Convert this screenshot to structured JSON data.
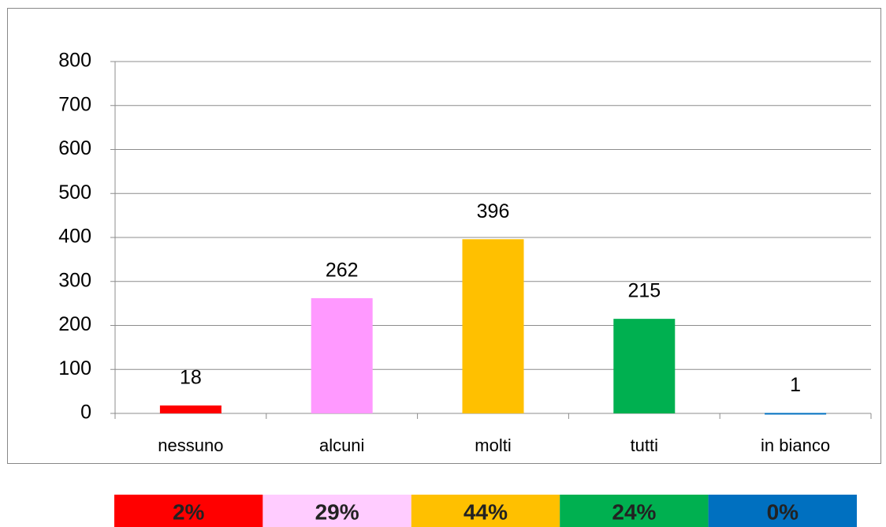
{
  "chart_data": {
    "type": "bar",
    "categories": [
      "nessuno",
      "alcuni",
      "molti",
      "tutti",
      "in bianco"
    ],
    "values": [
      18,
      262,
      396,
      215,
      1
    ],
    "colors": [
      "#ff0000",
      "#ff99ff",
      "#ffc000",
      "#00b050",
      "#0070c0"
    ],
    "ylim": [
      0,
      800
    ],
    "yticks": [
      0,
      100,
      200,
      300,
      400,
      500,
      600,
      700,
      800
    ],
    "grid": true,
    "percent_strip": {
      "values": [
        2,
        29,
        44,
        24,
        0
      ],
      "value_labels": [
        "2%",
        "29%",
        "44%",
        "24%",
        "0%"
      ],
      "colors": [
        "#ff0000",
        "#ffccff",
        "#ffc000",
        "#00b050",
        "#0070c0"
      ]
    }
  }
}
